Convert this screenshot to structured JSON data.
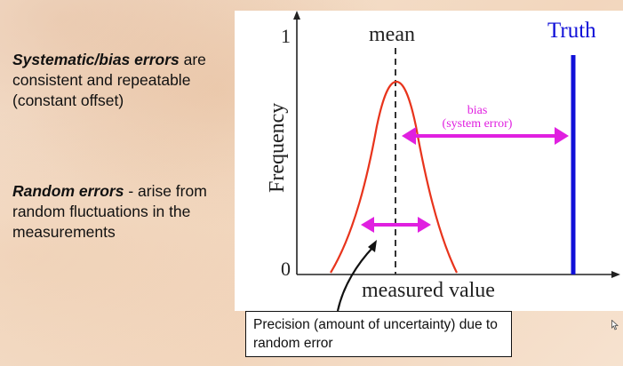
{
  "left_text": {
    "systematic": {
      "emphasis": "Systematic/bias errors",
      "rest": " are consistent and repeatable (constant offset)"
    },
    "random": {
      "emphasis": "Random errors",
      "rest": " - arise from random fluctuations in the measurements"
    }
  },
  "diagram": {
    "y_axis_label": "Frequency",
    "y_top_tick": "1",
    "y_bottom_tick": "0",
    "x_axis_label": "measured value",
    "mean_label": "mean",
    "truth_label": "Truth",
    "bias_label_line1": "bias",
    "bias_label_line2": "(system error)",
    "colors": {
      "curve": "#e8341c",
      "truth": "#1010d8",
      "arrow": "#e020e0",
      "axis": "#222222"
    }
  },
  "callout": {
    "text": "Precision (amount of uncertainty) due to random error"
  }
}
